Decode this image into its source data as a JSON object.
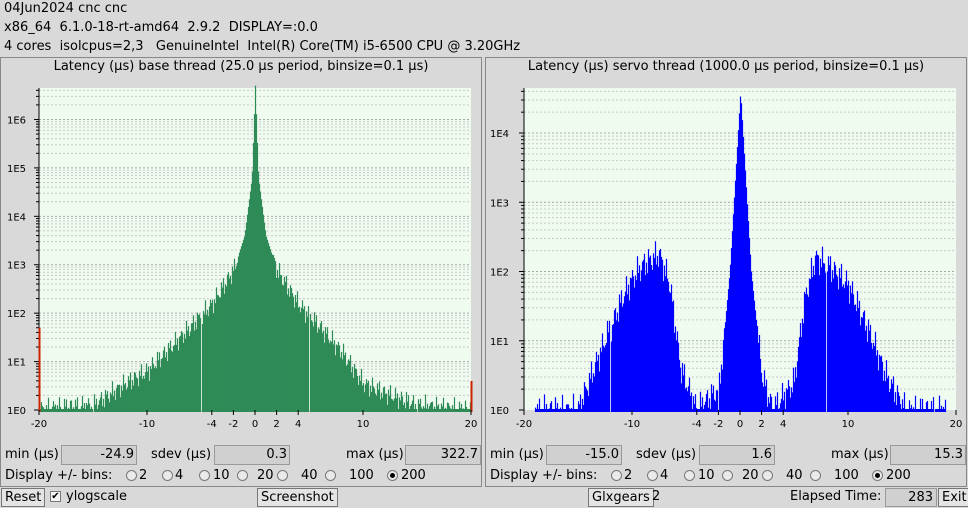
{
  "header": {
    "line1": "04Jun2024 cnc cnc",
    "line2": "x86_64  6.1.0-18-rt-amd64  2.9.2  DISPLAY=:0.0",
    "line3": "4 cores  isolcpus=2,3   GenuineIntel  Intel(R) Core(TM) i5-6500 CPU @ 3.20GHz"
  },
  "base_panel": {
    "title": "Latency (µs) base thread (25.0 µs period, binsize=0.1 µs)",
    "min_label": "min (µs)",
    "min_value": "-24.9",
    "sdev_label": "sdev (µs)",
    "sdev_value": "0.3",
    "max_label": "max (µs)",
    "max_value": "322.7"
  },
  "servo_panel": {
    "title": "Latency (µs) servo thread (1000.0 µs period, binsize=0.1 µs)",
    "min_label": "min (µs)",
    "min_value": "-15.0",
    "sdev_label": "sdev (µs)",
    "sdev_value": "1.6",
    "max_label": "max (µs)",
    "max_value": "15.3"
  },
  "bins": {
    "label": "Display +/- bins:",
    "options": [
      "2",
      "4",
      "10",
      "20",
      "40",
      "100",
      "200"
    ],
    "selected": "200"
  },
  "bottom": {
    "reset_label": "Reset",
    "ylogscale_label": "ylogscale",
    "ylogscale_checked": true,
    "screenshot_label": "Screenshot",
    "glxgears_label": "Glxgears",
    "glxgears_count": "2",
    "elapsed_label": "Elapsed Time:",
    "elapsed_value": "283",
    "exit_label": "Exit"
  },
  "chart_data": [
    {
      "type": "bar",
      "title": "Latency (µs) base thread (25.0 µs period, binsize=0.1 µs)",
      "xlim": [
        -20,
        20
      ],
      "x_ticks": [
        -20,
        -10,
        -4,
        -2,
        0,
        2,
        4,
        10,
        20
      ],
      "y_log_scale": true,
      "y_ticks": [
        "1E0",
        "1E1",
        "1E2",
        "1E3",
        "1E4",
        "1E5",
        "1E6"
      ],
      "ylim": [
        1,
        10000000
      ],
      "grid": true,
      "bar_color": "#2e8b57",
      "overflow_color": "#cc2200",
      "peak_log10": 6.7,
      "histogram_log10_envelope": [
        {
          "x": -20,
          "y": 0
        },
        {
          "x": -18.5,
          "y": 0.05
        },
        {
          "x": -15,
          "y": 0.1
        },
        {
          "x": -12,
          "y": 0.55
        },
        {
          "x": -10,
          "y": 0.8
        },
        {
          "x": -8,
          "y": 1.25
        },
        {
          "x": -6,
          "y": 1.7
        },
        {
          "x": -4,
          "y": 2.2
        },
        {
          "x": -2,
          "y": 2.9
        },
        {
          "x": -1,
          "y": 3.6
        },
        {
          "x": -0.3,
          "y": 4.8
        },
        {
          "x": 0,
          "y": 6.7
        },
        {
          "x": 0.3,
          "y": 4.8
        },
        {
          "x": 1,
          "y": 3.6
        },
        {
          "x": 2,
          "y": 2.9
        },
        {
          "x": 4,
          "y": 2.2
        },
        {
          "x": 6,
          "y": 1.7
        },
        {
          "x": 8,
          "y": 1.2
        },
        {
          "x": 10,
          "y": 0.55
        },
        {
          "x": 12,
          "y": 0.35
        },
        {
          "x": 15,
          "y": 0.1
        },
        {
          "x": 20,
          "y": 0
        }
      ],
      "overflow_bins": [
        {
          "x": -20,
          "y": 1.7
        },
        {
          "x": 20,
          "y": 0.6
        }
      ]
    },
    {
      "type": "bar",
      "title": "Latency (µs) servo thread (1000.0 µs period, binsize=0.1 µs)",
      "xlim": [
        -20,
        20
      ],
      "x_ticks": [
        -20,
        -10,
        -4,
        -2,
        0,
        2,
        4,
        10,
        20
      ],
      "y_log_scale": true,
      "y_ticks": [
        "1E0",
        "1E1",
        "1E2",
        "1E3",
        "1E4"
      ],
      "ylim": [
        1,
        100000
      ],
      "grid": true,
      "bar_color": "#0000ff",
      "peak_log10": 4.6,
      "histogram_log10_envelope": [
        {
          "x": -19,
          "y": 0
        },
        {
          "x": -15,
          "y": 0
        },
        {
          "x": -12.5,
          "y": 1.0
        },
        {
          "x": -11,
          "y": 1.6
        },
        {
          "x": -10,
          "y": 1.9
        },
        {
          "x": -9,
          "y": 2.1
        },
        {
          "x": -7.5,
          "y": 2.25
        },
        {
          "x": -6.5,
          "y": 1.8
        },
        {
          "x": -5.5,
          "y": 0.6
        },
        {
          "x": -4,
          "y": 0
        },
        {
          "x": -2,
          "y": 0.3
        },
        {
          "x": -1,
          "y": 2.0
        },
        {
          "x": 0,
          "y": 4.6
        },
        {
          "x": 1,
          "y": 2.0
        },
        {
          "x": 2,
          "y": 0.5
        },
        {
          "x": 3,
          "y": 0
        },
        {
          "x": 5,
          "y": 0.4
        },
        {
          "x": 6,
          "y": 1.6
        },
        {
          "x": 7,
          "y": 2.2
        },
        {
          "x": 8,
          "y": 2.1
        },
        {
          "x": 10,
          "y": 1.8
        },
        {
          "x": 12,
          "y": 1.1
        },
        {
          "x": 13.5,
          "y": 0.5
        },
        {
          "x": 15.3,
          "y": 0
        },
        {
          "x": 19,
          "y": 0
        }
      ]
    }
  ]
}
